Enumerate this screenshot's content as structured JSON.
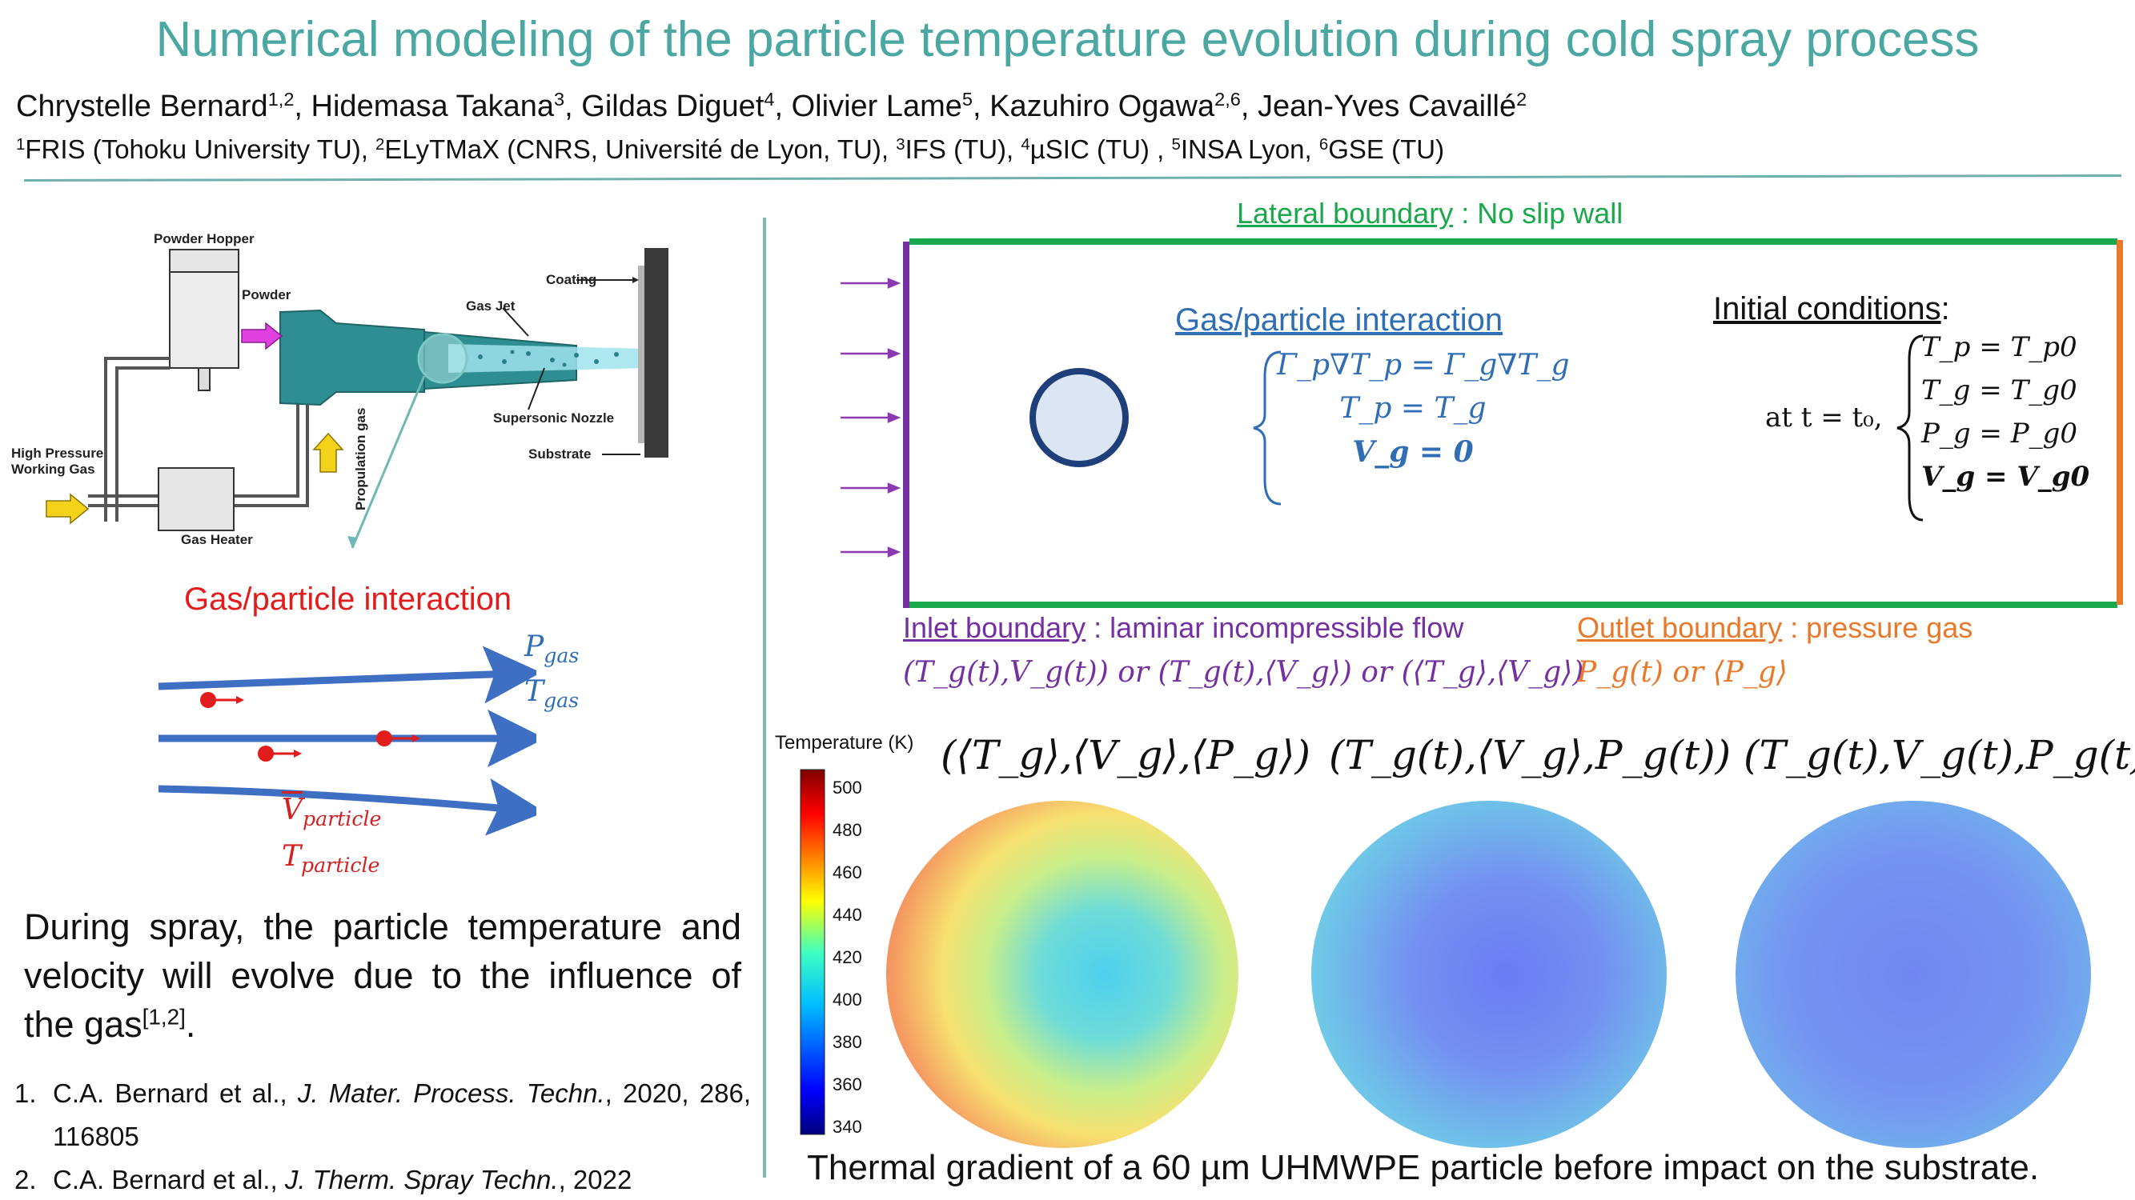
{
  "header": {
    "title": "Numerical modeling of the particle temperature evolution during cold spray process",
    "authors": [
      {
        "name": "Chrystelle Bernard",
        "sup": "1,2"
      },
      {
        "name": "Hidemasa Takana",
        "sup": "3"
      },
      {
        "name": "Gildas Diguet",
        "sup": "4"
      },
      {
        "name": "Olivier Lame",
        "sup": "5"
      },
      {
        "name": "Kazuhiro Ogawa",
        "sup": "2,6"
      },
      {
        "name": "Jean-Yves Cavaillé",
        "sup": "2"
      }
    ],
    "affiliations": [
      {
        "sup": "1",
        "text": "FRIS (Tohoku University TU), "
      },
      {
        "sup": "2",
        "text": "ELyTMaX (CNRS, Université de Lyon, TU), "
      },
      {
        "sup": "3",
        "text": "IFS (TU), "
      },
      {
        "sup": "4",
        "text": "µSIC (TU) , "
      },
      {
        "sup": "5",
        "text": "INSA Lyon, "
      },
      {
        "sup": "6",
        "text": "GSE (TU)"
      }
    ]
  },
  "schematic": {
    "powder_hopper": "Powder Hopper",
    "powder": "Powder",
    "gas_jet": "Gas Jet",
    "coating": "Coating",
    "supersonic_nozzle": "Supersonic Nozzle",
    "substrate": "Substrate",
    "high_pressure_line1": "High Pressure",
    "high_pressure_line2": "Working Gas",
    "gas_heater": "Gas Heater",
    "propulation_gas": "Propulation gas"
  },
  "interaction": {
    "title": "Gas/particle interaction",
    "p_gas": "P",
    "p_gas_sub": "gas",
    "t_gas": "T",
    "t_gas_sub": "gas",
    "v_particle": "V",
    "v_particle_sub": "particle",
    "t_particle": "T",
    "t_particle_sub": "particle"
  },
  "body_text": {
    "main": "During spray, the particle temperature and velocity will evolve due to the influence of the gas",
    "cite": "[1,2]",
    "end": "."
  },
  "references": [
    {
      "num": "1.",
      "authors": "C.A. Bernard et al., ",
      "journal": "J. Mater. Process. Techn.",
      "rest": ", 2020, 286, 116805"
    },
    {
      "num": "2.",
      "authors": "C.A. Bernard et al., ",
      "journal": "J. Therm. Spray Techn.",
      "rest": ", 2022"
    }
  ],
  "domain": {
    "lateral_label": "Lateral boundary",
    "lateral_rest": " : No slip wall",
    "gp_title": "Gas/particle interaction",
    "gp_eq1": "Γ_p∇T_p = Γ_g∇T_g",
    "gp_eq2": "T_p = T_g",
    "gp_eq3": "V_g = 0",
    "init_title": "Initial conditions",
    "init_colon": ":",
    "init_at": "at t = t₀,",
    "init_eq1": "T_p = T_p0",
    "init_eq2": "T_g = T_g0",
    "init_eq3": "P_g = P_g0",
    "init_eq4": "V_g = V_g0",
    "inlet_label": "Inlet boundary",
    "inlet_rest": " : laminar incompressible flow",
    "inlet_options": "(T_g(t),V_g(t)) or (T_g(t),⟨V_g⟩) or (⟨T_g⟩,⟨V_g⟩)",
    "outlet_label": "Outlet boundary",
    "outlet_rest": " : pressure gas",
    "outlet_options": "P_g(t) or ⟨P_g⟩"
  },
  "results": {
    "colorbar_title": "Temperature (K)",
    "colorbar_ticks": [
      "500",
      "480",
      "460",
      "440",
      "420",
      "400",
      "380",
      "360",
      "340"
    ],
    "sim1_title": "(⟨T_g⟩,⟨V_g⟩,⟨P_g⟩)",
    "sim2_title": "(T_g(t),⟨V_g⟩,P_g(t))",
    "sim3_title": "(T_g(t),V_g(t),P_g(t))",
    "caption": "Thermal gradient of a 60 µm UHMWPE particle before impact on the substrate."
  },
  "colors": {
    "title_teal": "#4aa7a2",
    "green": "#19a84c",
    "purple": "#7430a0",
    "orange": "#e9792a",
    "blue": "#2f6eb5",
    "red": "#e31b1b"
  }
}
